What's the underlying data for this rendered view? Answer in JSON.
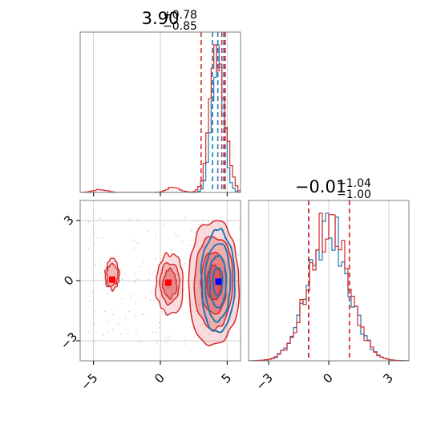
{
  "chart_data": {
    "type": "corner",
    "colors": {
      "blue": "#1f77b4",
      "red": "#d62728",
      "red_fill": "#e07c7c",
      "marker_blue": "#0000ff",
      "marker_red": "#ff0000"
    },
    "panels": [
      {
        "id": "x-hist",
        "type": "histogram",
        "title_value": "3.90",
        "title_plus": "+0.78",
        "title_minus": "−0.85",
        "xlim": [
          -6,
          6
        ],
        "grid": true,
        "quantiles_blue": [
          3.9,
          4.3,
          4.75
        ],
        "quantiles_red": [
          3.05,
          4.6,
          4.85
        ],
        "series": [
          {
            "color": "blue",
            "center": 4.3,
            "sigma": 0.45,
            "nbins": 60,
            "weight": 1.0
          },
          {
            "color": "red",
            "center": 4.3,
            "sigma": 0.55,
            "nbins": 60,
            "weight": 1.0
          }
        ]
      },
      {
        "id": "xy-2d",
        "type": "2d-contour",
        "xlim": [
          -6,
          6
        ],
        "ylim": [
          -4,
          4
        ],
        "xticks": [
          "−5",
          "0",
          "5"
        ],
        "xtick_values": [
          -5,
          0,
          5
        ],
        "yticks": [
          "−3",
          "0",
          "3"
        ],
        "ytick_values": [
          -3,
          0,
          3
        ],
        "grid": true,
        "markers": [
          {
            "color": "marker_red",
            "x": -3.6,
            "y": 0.05
          },
          {
            "color": "marker_red",
            "x": 0.6,
            "y": -0.1
          },
          {
            "color": "marker_blue",
            "x": 4.35,
            "y": -0.05
          }
        ]
      },
      {
        "id": "y-hist",
        "type": "histogram",
        "title_value": "−0.01",
        "title_plus": "+1.04",
        "title_minus": "−1.00",
        "xlim": [
          -4,
          4
        ],
        "xticks": [
          "−3",
          "0",
          "3"
        ],
        "xtick_values": [
          -3,
          0,
          3
        ],
        "grid": true,
        "quantiles_blue": [
          -1.0,
          1.03
        ],
        "quantiles_red": [
          -1.0,
          1.03
        ],
        "series": [
          {
            "color": "blue",
            "center": 0.0,
            "sigma": 1.0,
            "nbins": 50,
            "weight": 1.0
          },
          {
            "color": "red",
            "center": 0.0,
            "sigma": 1.0,
            "nbins": 50,
            "weight": 1.0
          }
        ]
      }
    ]
  }
}
